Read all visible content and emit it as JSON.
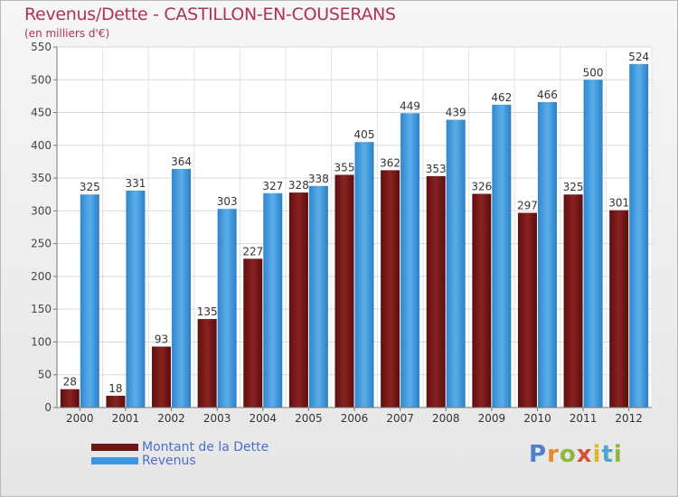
{
  "title": "Revenus/Dette - CASTILLON-EN-COUSERANS",
  "subtitle": "(en milliers d'€)",
  "logo": {
    "letters": [
      {
        "ch": "P",
        "color": "#4f7fc8"
      },
      {
        "ch": "r",
        "color": "#e08a2c"
      },
      {
        "ch": "o",
        "color": "#8fb73c"
      },
      {
        "ch": "x",
        "color": "#d8503a"
      },
      {
        "ch": "i",
        "color": "#e0b62c"
      },
      {
        "ch": "t",
        "color": "#4fa5c8"
      },
      {
        "ch": "i",
        "color": "#8fb73c"
      }
    ]
  },
  "chart_data": {
    "type": "bar",
    "title": "Revenus/Dette - CASTILLON-EN-COUSERANS",
    "subtitle": "(en milliers d'€)",
    "categories": [
      "2000",
      "2001",
      "2002",
      "2003",
      "2004",
      "2005",
      "2006",
      "2007",
      "2008",
      "2009",
      "2010",
      "2011",
      "2012"
    ],
    "series": [
      {
        "name": "Montant de la Dette",
        "color": "#7a1a1a",
        "values": [
          28,
          18,
          93,
          135,
          227,
          328,
          355,
          362,
          353,
          326,
          297,
          325,
          301
        ]
      },
      {
        "name": "Revenus",
        "color": "#3e97de",
        "values": [
          325,
          331,
          364,
          303,
          327,
          338,
          405,
          449,
          439,
          462,
          466,
          500,
          524
        ]
      }
    ],
    "ylim": [
      0,
      550
    ],
    "yticks": [
      0,
      50,
      100,
      150,
      200,
      250,
      300,
      350,
      400,
      450,
      500,
      550
    ],
    "grid": true,
    "legend_position": "bottom-left"
  }
}
